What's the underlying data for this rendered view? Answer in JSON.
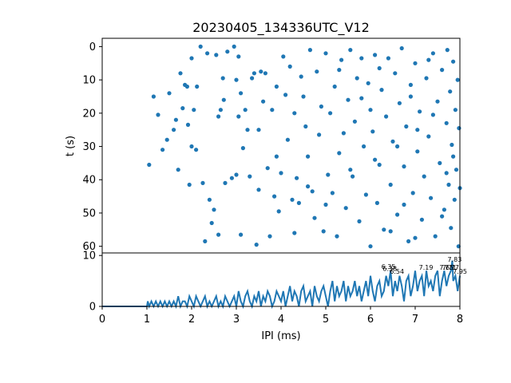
{
  "chart_data": [
    {
      "type": "scatter",
      "title": "20230405_134336UTC_V12",
      "xlabel": "",
      "ylabel": "t (s)",
      "xlim": [
        0,
        8
      ],
      "ylim": [
        62,
        -2.5
      ],
      "y_inverted": true,
      "yticks": [
        0,
        10,
        20,
        30,
        40,
        50,
        60
      ],
      "marker_color": "#1f77b4",
      "points": [
        [
          1.05,
          35.5
        ],
        [
          1.15,
          15
        ],
        [
          1.25,
          20.5
        ],
        [
          1.35,
          31
        ],
        [
          1.45,
          28
        ],
        [
          1.5,
          14
        ],
        [
          1.6,
          25
        ],
        [
          1.65,
          22
        ],
        [
          1.7,
          37
        ],
        [
          1.75,
          8
        ],
        [
          1.8,
          18.5
        ],
        [
          1.85,
          11.5
        ],
        [
          1.9,
          12
        ],
        [
          1.92,
          23.5
        ],
        [
          1.95,
          41.5
        ],
        [
          2.0,
          3.5
        ],
        [
          2.0,
          30
        ],
        [
          2.05,
          19
        ],
        [
          2.1,
          31
        ],
        [
          2.12,
          12
        ],
        [
          2.2,
          0
        ],
        [
          2.25,
          41
        ],
        [
          2.3,
          58.5
        ],
        [
          2.35,
          2
        ],
        [
          2.4,
          46
        ],
        [
          2.45,
          53
        ],
        [
          2.5,
          49
        ],
        [
          2.55,
          2.5
        ],
        [
          2.6,
          21
        ],
        [
          2.6,
          56.5
        ],
        [
          2.65,
          19
        ],
        [
          2.7,
          9.5
        ],
        [
          2.72,
          16
        ],
        [
          2.75,
          41
        ],
        [
          2.8,
          1.5
        ],
        [
          2.9,
          39.5
        ],
        [
          2.95,
          0
        ],
        [
          3.0,
          10
        ],
        [
          3.0,
          38.5
        ],
        [
          3.05,
          21
        ],
        [
          3.05,
          3
        ],
        [
          3.1,
          14
        ],
        [
          3.1,
          56.5
        ],
        [
          3.15,
          30.5
        ],
        [
          3.2,
          19
        ],
        [
          3.25,
          25
        ],
        [
          3.3,
          39
        ],
        [
          3.35,
          9.5
        ],
        [
          3.4,
          8
        ],
        [
          3.45,
          59.5
        ],
        [
          3.5,
          25
        ],
        [
          3.5,
          43
        ],
        [
          3.55,
          7.5
        ],
        [
          3.6,
          16.5
        ],
        [
          3.65,
          8
        ],
        [
          3.7,
          36.5
        ],
        [
          3.75,
          57
        ],
        [
          3.8,
          19
        ],
        [
          3.85,
          45
        ],
        [
          3.9,
          12
        ],
        [
          3.95,
          49.5
        ],
        [
          4.0,
          38
        ],
        [
          4.05,
          3
        ],
        [
          4.1,
          14.5
        ],
        [
          4.15,
          28
        ],
        [
          4.2,
          6
        ],
        [
          4.25,
          46
        ],
        [
          4.3,
          20
        ],
        [
          4.35,
          39.5
        ],
        [
          4.4,
          47
        ],
        [
          4.45,
          9
        ],
        [
          4.5,
          15
        ],
        [
          4.55,
          24
        ],
        [
          4.6,
          33
        ],
        [
          4.65,
          1
        ],
        [
          4.7,
          43.5
        ],
        [
          4.75,
          51.5
        ],
        [
          4.8,
          7.5
        ],
        [
          4.85,
          26.5
        ],
        [
          4.9,
          18
        ],
        [
          4.95,
          55.5
        ],
        [
          5.0,
          2
        ],
        [
          5.05,
          38.5
        ],
        [
          5.1,
          20
        ],
        [
          5.15,
          44
        ],
        [
          5.2,
          12
        ],
        [
          5.25,
          57
        ],
        [
          5.3,
          32
        ],
        [
          5.35,
          4
        ],
        [
          5.4,
          26
        ],
        [
          5.45,
          48.5
        ],
        [
          5.5,
          16
        ],
        [
          5.55,
          1
        ],
        [
          5.6,
          39
        ],
        [
          5.65,
          22.5
        ],
        [
          5.7,
          9.5
        ],
        [
          5.75,
          52.5
        ],
        [
          5.8,
          3.5
        ],
        [
          5.85,
          30
        ],
        [
          5.9,
          44.5
        ],
        [
          5.95,
          11
        ],
        [
          6.0,
          19
        ],
        [
          6.0,
          60
        ],
        [
          6.05,
          25.5
        ],
        [
          6.1,
          2.5
        ],
        [
          6.15,
          47
        ],
        [
          6.2,
          35.5
        ],
        [
          6.25,
          13
        ],
        [
          6.3,
          55
        ],
        [
          6.35,
          21
        ],
        [
          6.4,
          3.5
        ],
        [
          6.45,
          41.5
        ],
        [
          6.5,
          28.5
        ],
        [
          6.55,
          8
        ],
        [
          6.6,
          50.5
        ],
        [
          6.65,
          17
        ],
        [
          6.7,
          0.5
        ],
        [
          6.75,
          36
        ],
        [
          6.8,
          24
        ],
        [
          6.85,
          58.5
        ],
        [
          6.9,
          11.5
        ],
        [
          6.95,
          44
        ],
        [
          7.0,
          5
        ],
        [
          7.05,
          31.5
        ],
        [
          7.1,
          19.5
        ],
        [
          7.15,
          52
        ],
        [
          7.2,
          39
        ],
        [
          7.25,
          9.5
        ],
        [
          7.3,
          27
        ],
        [
          7.35,
          45.5
        ],
        [
          7.4,
          2
        ],
        [
          7.45,
          57
        ],
        [
          7.5,
          16.5
        ],
        [
          7.55,
          35
        ],
        [
          7.6,
          7
        ],
        [
          7.65,
          49
        ],
        [
          7.7,
          23
        ],
        [
          7.72,
          1
        ],
        [
          7.75,
          41.5
        ],
        [
          7.78,
          13.5
        ],
        [
          7.8,
          54.5
        ],
        [
          7.82,
          29.5
        ],
        [
          7.85,
          4.5
        ],
        [
          7.88,
          46
        ],
        [
          7.9,
          19
        ],
        [
          7.92,
          37
        ],
        [
          7.95,
          10
        ],
        [
          7.97,
          60
        ],
        [
          7.98,
          24.5
        ],
        [
          8.0,
          42.5
        ],
        [
          6.2,
          6.5
        ],
        [
          6.6,
          30
        ],
        [
          7.0,
          57.5
        ],
        [
          7.4,
          20.5
        ],
        [
          7.7,
          38
        ],
        [
          5.3,
          7
        ],
        [
          4.6,
          42
        ],
        [
          3.9,
          33
        ],
        [
          6.9,
          15
        ],
        [
          7.6,
          51
        ],
        [
          5.0,
          47.5
        ],
        [
          6.1,
          34
        ],
        [
          7.3,
          4
        ],
        [
          6.45,
          55.5
        ],
        [
          5.8,
          15.5
        ],
        [
          4.3,
          56
        ],
        [
          7.05,
          25
        ],
        [
          7.85,
          33
        ],
        [
          6.75,
          47.5
        ],
        [
          5.55,
          37
        ]
      ]
    },
    {
      "type": "line",
      "title": "",
      "xlabel": "IPI (ms)",
      "ylabel": "",
      "xlim": [
        0,
        8
      ],
      "ylim": [
        0,
        10.5
      ],
      "xticks": [
        0,
        1,
        2,
        3,
        4,
        5,
        6,
        7,
        8
      ],
      "yticks": [
        0,
        10
      ],
      "line_color": "#1f77b4",
      "series": [
        {
          "x": [
            0.0,
            1.0,
            1.02,
            1.05,
            1.1,
            1.15,
            1.2,
            1.25,
            1.3,
            1.35,
            1.4,
            1.45,
            1.5,
            1.55,
            1.6,
            1.65,
            1.7,
            1.75,
            1.8,
            1.85,
            1.9,
            1.95,
            2.0,
            2.05,
            2.1,
            2.15,
            2.2,
            2.25,
            2.3,
            2.35,
            2.4,
            2.45,
            2.5,
            2.55,
            2.6,
            2.65,
            2.7,
            2.75,
            2.8,
            2.85,
            2.9,
            2.95,
            3.0,
            3.05,
            3.1,
            3.15,
            3.2,
            3.25,
            3.3,
            3.35,
            3.4,
            3.45,
            3.5,
            3.55,
            3.6,
            3.65,
            3.7,
            3.75,
            3.8,
            3.85,
            3.9,
            3.95,
            4.0,
            4.05,
            4.1,
            4.15,
            4.2,
            4.25,
            4.3,
            4.35,
            4.4,
            4.45,
            4.5,
            4.55,
            4.6,
            4.65,
            4.7,
            4.75,
            4.8,
            4.85,
            4.9,
            4.95,
            5.0,
            5.05,
            5.1,
            5.15,
            5.2,
            5.25,
            5.3,
            5.35,
            5.4,
            5.45,
            5.5,
            5.55,
            5.6,
            5.65,
            5.7,
            5.75,
            5.8,
            5.85,
            5.9,
            5.95,
            6.0,
            6.05,
            6.1,
            6.15,
            6.2,
            6.25,
            6.3,
            6.35,
            6.4,
            6.45,
            6.5,
            6.55,
            6.6,
            6.65,
            6.7,
            6.75,
            6.8,
            6.85,
            6.9,
            6.95,
            7.0,
            7.05,
            7.1,
            7.15,
            7.2,
            7.25,
            7.3,
            7.35,
            7.4,
            7.45,
            7.5,
            7.55,
            7.6,
            7.65,
            7.7,
            7.75,
            7.8,
            7.83,
            7.85,
            7.9,
            7.95,
            8.0
          ],
          "y": [
            0,
            0,
            1,
            0,
            1,
            0,
            1,
            0,
            1,
            0,
            1,
            0,
            1,
            0,
            1,
            0,
            2,
            0,
            1,
            1,
            0,
            2,
            1,
            0,
            2,
            1,
            0,
            1,
            2,
            0,
            1,
            0,
            1,
            2,
            0,
            1,
            0,
            2,
            1,
            0,
            1,
            2,
            0,
            3,
            1,
            0,
            2,
            3,
            1,
            0,
            2,
            1,
            3,
            0,
            2,
            1,
            3,
            2,
            0,
            1,
            3,
            2,
            1,
            3,
            0,
            2,
            4,
            1,
            3,
            2,
            0,
            3,
            4,
            1,
            2,
            3,
            0,
            4,
            2,
            1,
            3,
            4,
            2,
            0,
            3,
            5,
            1,
            4,
            2,
            3,
            5,
            1,
            4,
            2,
            3,
            5,
            2,
            4,
            1,
            3,
            5,
            2,
            6,
            3,
            1,
            4,
            5,
            2,
            3,
            6,
            4,
            7,
            2,
            5,
            3,
            6,
            4,
            1,
            5,
            6,
            2,
            4,
            7,
            3,
            5,
            6,
            2,
            7,
            4,
            5,
            3,
            6,
            7,
            2,
            5,
            7,
            4,
            6,
            7,
            9,
            5,
            6,
            3,
            6
          ]
        }
      ],
      "annotations": [
        {
          "label": "6.35",
          "x": 6.35,
          "y": 7.4
        },
        {
          "label": "6.38",
          "x": 6.38,
          "y": 7.0
        },
        {
          "label": "6.54",
          "x": 6.54,
          "y": 6.4
        },
        {
          "label": "7.19",
          "x": 7.19,
          "y": 7.2
        },
        {
          "label": "7.65",
          "x": 7.65,
          "y": 7.2
        },
        {
          "label": "7.71",
          "x": 7.71,
          "y": 7.2
        },
        {
          "label": "7.77",
          "x": 7.77,
          "y": 7.2
        },
        {
          "label": "7.83",
          "x": 7.83,
          "y": 8.8
        },
        {
          "label": "7.95",
          "x": 7.95,
          "y": 6.4
        }
      ]
    }
  ]
}
